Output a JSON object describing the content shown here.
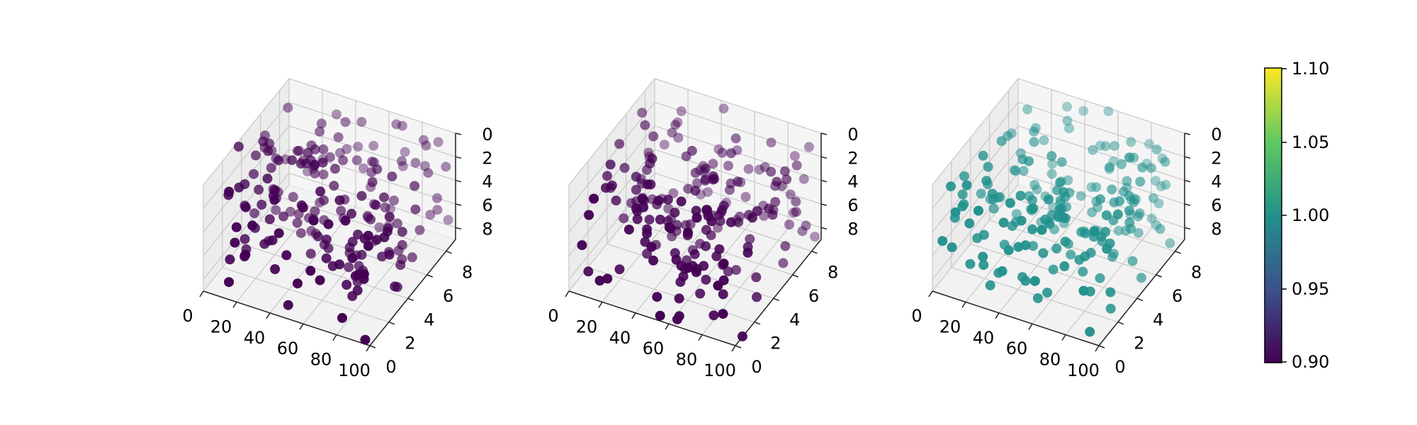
{
  "chart_data": [
    {
      "type": "scatter3d",
      "title": "",
      "xlabel": "",
      "ylabel": "",
      "zlabel": "",
      "xlim": [
        0,
        100
      ],
      "ylim": [
        0,
        9
      ],
      "zlim": [
        0,
        9
      ],
      "x_ticks": [
        "0",
        "20",
        "40",
        "60",
        "80",
        "100"
      ],
      "y_ticks": [
        "0",
        "2",
        "4",
        "6",
        "8"
      ],
      "z_ticks": [
        "0",
        "2",
        "4",
        "6",
        "8"
      ],
      "z_axis_inverted": true,
      "grid": true,
      "point_color": "#440154",
      "point_count": 200,
      "color_value": 0.9
    },
    {
      "type": "scatter3d",
      "title": "",
      "xlabel": "",
      "ylabel": "",
      "zlabel": "",
      "xlim": [
        0,
        100
      ],
      "ylim": [
        0,
        9
      ],
      "zlim": [
        0,
        9
      ],
      "x_ticks": [
        "0",
        "20",
        "40",
        "60",
        "80",
        "100"
      ],
      "y_ticks": [
        "0",
        "2",
        "4",
        "6",
        "8"
      ],
      "z_ticks": [
        "0",
        "2",
        "4",
        "6",
        "8"
      ],
      "z_axis_inverted": true,
      "grid": true,
      "point_color": "#440154",
      "point_count": 200,
      "color_value": 0.9
    },
    {
      "type": "scatter3d",
      "title": "",
      "xlabel": "",
      "ylabel": "",
      "zlabel": "",
      "xlim": [
        0,
        100
      ],
      "ylim": [
        0,
        9
      ],
      "zlim": [
        0,
        9
      ],
      "x_ticks": [
        "0",
        "20",
        "40",
        "60",
        "80",
        "100"
      ],
      "y_ticks": [
        "0",
        "2",
        "4",
        "6",
        "8"
      ],
      "z_ticks": [
        "0",
        "2",
        "4",
        "6",
        "8"
      ],
      "z_axis_inverted": true,
      "grid": true,
      "point_color": "#21918c",
      "point_count": 200,
      "color_value": 1.0
    }
  ],
  "colorbar": {
    "colormap": "viridis",
    "range": [
      0.9,
      1.1
    ],
    "ticks": [
      "1.10",
      "1.05",
      "1.00",
      "0.95",
      "0.90"
    ],
    "stops": [
      "#440154",
      "#3b528b",
      "#21918c",
      "#5ec962",
      "#fde725"
    ]
  }
}
